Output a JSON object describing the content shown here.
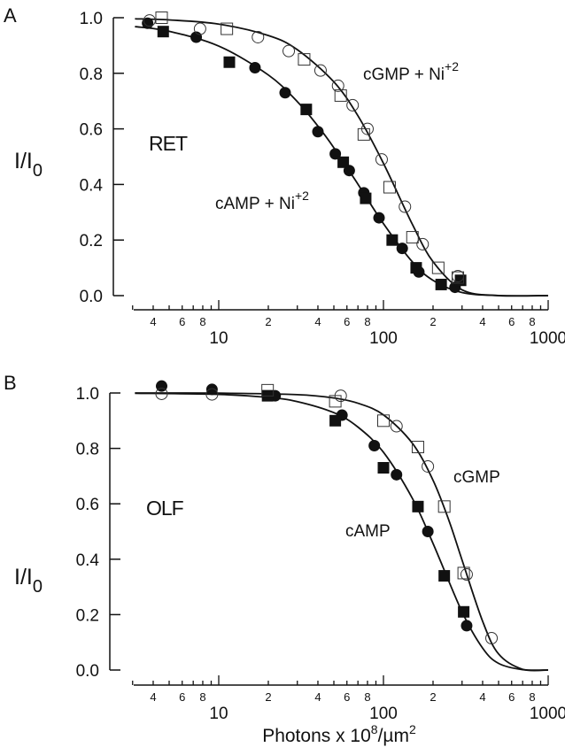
{
  "chart_data": [
    {
      "type": "scatter",
      "panel_label": "A",
      "title": "",
      "xlabel": "",
      "ylabel": "I/I",
      "ylabel_subscript": "0",
      "xscale": "log",
      "xlim": [
        3,
        1000
      ],
      "ylim": [
        0,
        1.0
      ],
      "grid": false,
      "yticks": [
        "0.0",
        "0.2",
        "0.4",
        "0.6",
        "0.8",
        "1.0"
      ],
      "xticks_major": [
        "10",
        "100",
        "1000"
      ],
      "xticks_minor_labels": [
        "4",
        "6",
        "8",
        "2",
        "4",
        "6",
        "8",
        "2",
        "4",
        "6",
        "8"
      ],
      "annotations": [
        {
          "text": "RET",
          "sup": ""
        },
        {
          "text": "cGMP + Ni",
          "sup": "+2"
        },
        {
          "text": "cAMP + Ni",
          "sup": "+2"
        }
      ],
      "series": [
        {
          "marker": "filled-circle",
          "x": [
            3.7,
            7.3,
            16.6,
            25.3,
            40,
            51,
            62,
            76,
            94,
            130,
            164,
            272
          ],
          "y": [
            0.98,
            0.93,
            0.82,
            0.73,
            0.59,
            0.51,
            0.45,
            0.37,
            0.28,
            0.17,
            0.085,
            0.03
          ]
        },
        {
          "marker": "filled-square",
          "x": [
            4.6,
            11.6,
            34,
            57,
            78,
            113,
            158,
            224,
            294
          ],
          "y": [
            0.95,
            0.84,
            0.67,
            0.48,
            0.35,
            0.2,
            0.1,
            0.04,
            0.055
          ]
        },
        {
          "marker": "open-circle",
          "x": [
            3.8,
            7.7,
            17.3,
            26.6,
            41.5,
            53,
            65,
            80,
            97.5,
            135,
            173,
            283
          ],
          "y": [
            0.99,
            0.96,
            0.93,
            0.88,
            0.81,
            0.755,
            0.685,
            0.6,
            0.49,
            0.32,
            0.185,
            0.07
          ]
        },
        {
          "marker": "open-square",
          "x": [
            4.5,
            11.2,
            33,
            55,
            76,
            109,
            150,
            215,
            283
          ],
          "y": [
            1.0,
            0.96,
            0.85,
            0.72,
            0.58,
            0.39,
            0.21,
            0.1,
            0.065
          ]
        },
        {
          "marker": "line",
          "x": [
            3.1,
            5,
            10,
            20,
            30,
            40,
            50,
            70,
            100,
            150,
            200,
            300,
            500,
            1000
          ],
          "y": [
            0.968,
            0.951,
            0.898,
            0.794,
            0.698,
            0.61,
            0.532,
            0.401,
            0.259,
            0.121,
            0.055,
            0.011,
            0.0004,
            0
          ]
        },
        {
          "marker": "line",
          "x": [
            3.1,
            5,
            10,
            20,
            30,
            50,
            70,
            100,
            150,
            200,
            300,
            500,
            1000
          ],
          "y": [
            0.996,
            0.992,
            0.977,
            0.936,
            0.885,
            0.769,
            0.647,
            0.476,
            0.256,
            0.122,
            0.021,
            0.0002,
            0
          ]
        }
      ]
    },
    {
      "type": "scatter",
      "panel_label": "B",
      "title": "",
      "xlabel": "Photons x 10",
      "xlabel_sup1": "8",
      "xlabel_mid": "/µm",
      "xlabel_sup2": "2",
      "ylabel": "I/I",
      "ylabel_subscript": "0",
      "xscale": "log",
      "xlim": [
        3,
        1000
      ],
      "ylim": [
        0,
        1.0
      ],
      "grid": false,
      "yticks": [
        "0.0",
        "0.2",
        "0.4",
        "0.6",
        "0.8",
        "1.0"
      ],
      "xticks_major": [
        "10",
        "100",
        "1000"
      ],
      "xticks_minor_labels": [
        "4",
        "6",
        "8",
        "2",
        "4",
        "6",
        "8",
        "2",
        "4",
        "6",
        "8"
      ],
      "annotations": [
        {
          "text": "OLF",
          "sup": ""
        },
        {
          "text": "cGMP",
          "sup": ""
        },
        {
          "text": "cAMP",
          "sup": ""
        }
      ],
      "series": [
        {
          "marker": "filled-circle",
          "x": [
            4.5,
            9.1,
            22,
            56,
            88,
            120,
            186,
            320
          ],
          "y": [
            1.025,
            1.013,
            0.99,
            0.92,
            0.81,
            0.705,
            0.5,
            0.16
          ]
        },
        {
          "marker": "filled-square",
          "x": [
            19.8,
            51,
            100,
            162,
            234,
            307
          ],
          "y": [
            0.99,
            0.9,
            0.73,
            0.59,
            0.34,
            0.21
          ]
        },
        {
          "marker": "open-circle",
          "x": [
            4.5,
            9.1,
            55,
            120,
            186,
            320,
            453
          ],
          "y": [
            0.997,
            0.995,
            0.99,
            0.88,
            0.735,
            0.345,
            0.115
          ]
        },
        {
          "marker": "open-square",
          "x": [
            19.8,
            51,
            100,
            162,
            234,
            307
          ],
          "y": [
            1.01,
            0.97,
            0.9,
            0.805,
            0.59,
            0.35
          ]
        },
        {
          "marker": "line",
          "x": [
            3.1,
            10,
            20,
            30,
            50,
            70,
            100,
            150,
            200,
            300,
            400,
            500,
            700,
            1000
          ],
          "y": [
            0.999,
            0.995,
            0.984,
            0.969,
            0.929,
            0.877,
            0.786,
            0.619,
            0.457,
            0.21,
            0.079,
            0.024,
            0.0014,
            0
          ]
        },
        {
          "marker": "line",
          "x": [
            3.1,
            10,
            30,
            50,
            70,
            100,
            150,
            200,
            250,
            300,
            400,
            500,
            700,
            1000
          ],
          "y": [
            1.0,
            0.9995,
            0.994,
            0.982,
            0.963,
            0.921,
            0.818,
            0.685,
            0.539,
            0.397,
            0.176,
            0.058,
            0.0026,
            0
          ]
        }
      ]
    }
  ],
  "colors": {
    "ink": "#111111",
    "background": "#ffffff"
  }
}
